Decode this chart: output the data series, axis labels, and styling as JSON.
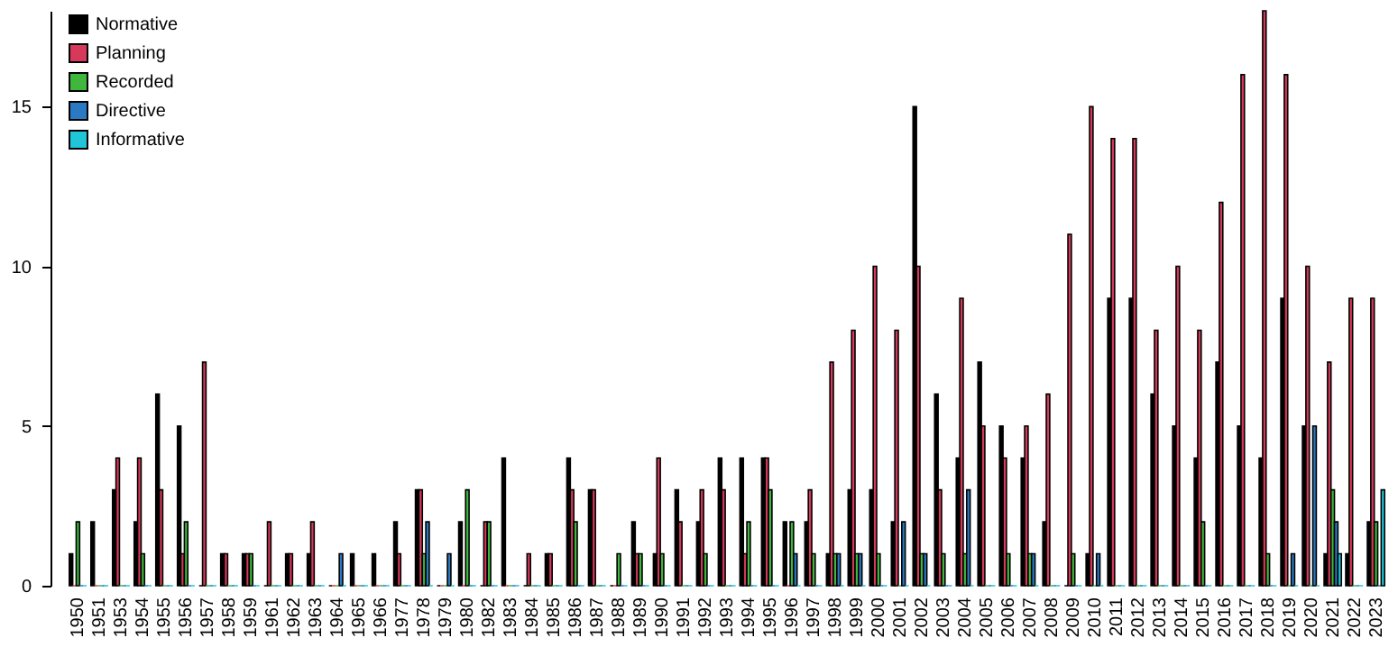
{
  "chart_data": {
    "type": "bar",
    "categories": [
      "1950",
      "1951",
      "1953",
      "1954",
      "1955",
      "1956",
      "1957",
      "1958",
      "1959",
      "1961",
      "1962",
      "1963",
      "1964",
      "1965",
      "1966",
      "1977",
      "1978",
      "1979",
      "1980",
      "1982",
      "1983",
      "1984",
      "1985",
      "1986",
      "1987",
      "1988",
      "1989",
      "1990",
      "1991",
      "1992",
      "1993",
      "1994",
      "1995",
      "1996",
      "1997",
      "1998",
      "1999",
      "2000",
      "2001",
      "2002",
      "2003",
      "2004",
      "2005",
      "2006",
      "2007",
      "2008",
      "2009",
      "2010",
      "2011",
      "2012",
      "2013",
      "2014",
      "2015",
      "2016",
      "2017",
      "2018",
      "2019",
      "2020",
      "2021",
      "2022",
      "2023"
    ],
    "series": [
      {
        "name": "Normative",
        "color": "#000000",
        "values": [
          1,
          2,
          3,
          2,
          6,
          5,
          0,
          1,
          1,
          0,
          1,
          1,
          0,
          1,
          1,
          2,
          3,
          0,
          2,
          0,
          4,
          0,
          1,
          4,
          3,
          0,
          2,
          1,
          3,
          2,
          4,
          4,
          4,
          2,
          2,
          1,
          3,
          3,
          2,
          15,
          6,
          4,
          7,
          5,
          4,
          2,
          0,
          1,
          9,
          9,
          6,
          5,
          4,
          7,
          5,
          4,
          9,
          5,
          1,
          1,
          2
        ]
      },
      {
        "name": "Planning",
        "color": "#d6395a",
        "values": [
          0,
          0,
          4,
          4,
          3,
          1,
          7,
          1,
          1,
          2,
          1,
          2,
          0,
          0,
          0,
          1,
          3,
          0,
          0,
          2,
          0,
          1,
          1,
          3,
          3,
          0,
          1,
          4,
          2,
          3,
          3,
          1,
          4,
          0,
          3,
          7,
          8,
          10,
          8,
          10,
          3,
          9,
          5,
          4,
          5,
          6,
          11,
          15,
          14,
          14,
          8,
          10,
          8,
          12,
          16,
          18,
          16,
          10,
          7,
          9,
          9
        ]
      },
      {
        "name": "Recorded",
        "color": "#3fb63c",
        "values": [
          2,
          0,
          0,
          1,
          0,
          2,
          0,
          0,
          1,
          0,
          0,
          0,
          0,
          0,
          0,
          0,
          1,
          0,
          3,
          2,
          0,
          0,
          0,
          2,
          0,
          1,
          1,
          1,
          0,
          1,
          0,
          2,
          3,
          2,
          1,
          1,
          1,
          1,
          0,
          1,
          1,
          1,
          0,
          1,
          1,
          0,
          1,
          0,
          0,
          0,
          0,
          0,
          2,
          0,
          0,
          1,
          0,
          0,
          3,
          0,
          2
        ]
      },
      {
        "name": "Directive",
        "color": "#2b79c2",
        "values": [
          0,
          0,
          0,
          0,
          0,
          0,
          0,
          0,
          0,
          0,
          0,
          0,
          1,
          0,
          0,
          0,
          2,
          1,
          0,
          0,
          0,
          0,
          0,
          0,
          0,
          0,
          0,
          0,
          0,
          0,
          0,
          0,
          0,
          1,
          0,
          1,
          1,
          0,
          2,
          1,
          0,
          3,
          0,
          0,
          1,
          0,
          0,
          1,
          0,
          0,
          0,
          0,
          0,
          0,
          0,
          0,
          1,
          5,
          2,
          0,
          0
        ]
      },
      {
        "name": "Informative",
        "color": "#20c6d8",
        "values": [
          0,
          0,
          0,
          0,
          0,
          0,
          0,
          0,
          0,
          0,
          0,
          0,
          0,
          0,
          0,
          0,
          0,
          0,
          0,
          0,
          0,
          0,
          0,
          0,
          0,
          0,
          0,
          0,
          0,
          0,
          0,
          0,
          0,
          0,
          0,
          0,
          0,
          0,
          0,
          0,
          0,
          0,
          0,
          0,
          0,
          0,
          0,
          0,
          0,
          0,
          0,
          0,
          0,
          0,
          0,
          0,
          0,
          0,
          1,
          0,
          3
        ]
      }
    ],
    "ylim": [
      0,
      18
    ],
    "yticks": [
      0,
      5,
      10,
      15
    ],
    "grid": false,
    "legend": "top left"
  }
}
